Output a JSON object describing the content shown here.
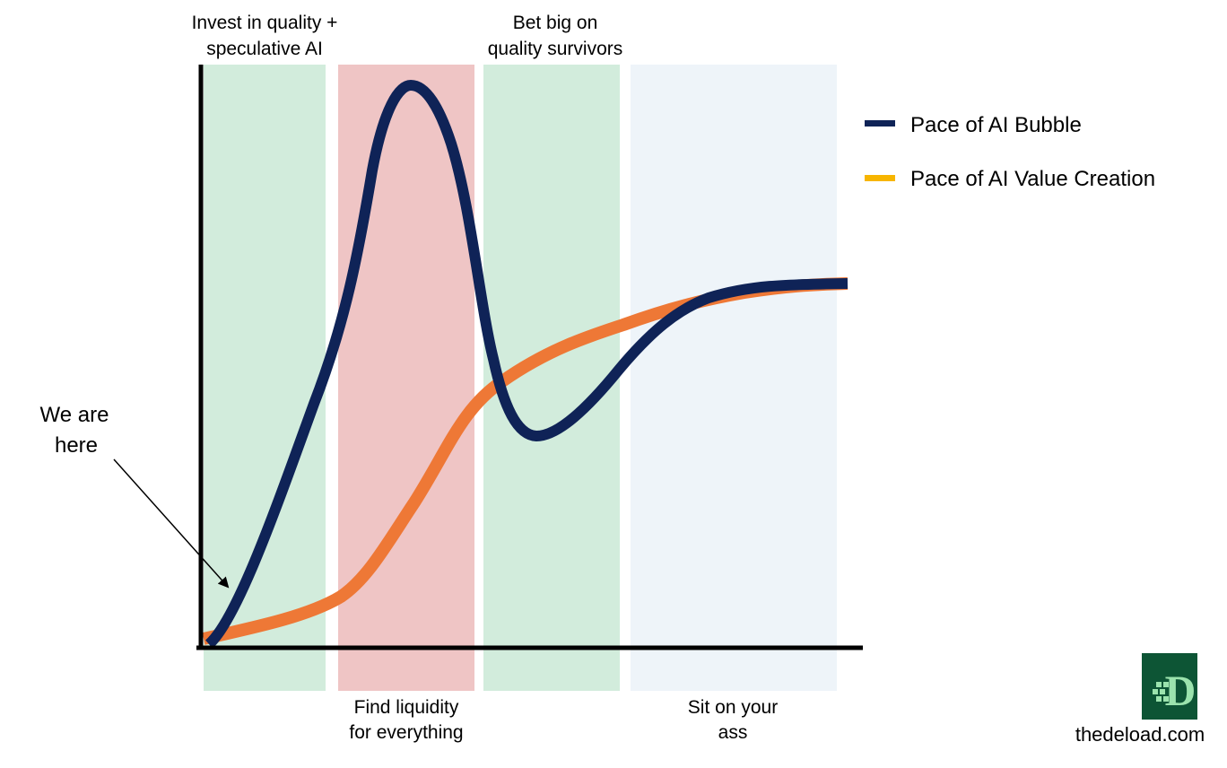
{
  "colors": {
    "invest_band": "#d2ecdc",
    "liquidity_band": "#efc5c5",
    "bet_band": "#d2ecdc",
    "sit_band": "#eef4f9",
    "bubble_line": "#0f2357",
    "value_line": "#ee7836",
    "value_legend_swatch": "#f7b500",
    "axis": "#000000",
    "logo_bg": "#0d5535",
    "logo_fg": "#9be3ad"
  },
  "phases": {
    "invest": {
      "line1": "Invest in quality +",
      "line2": "speculative AI"
    },
    "liquidity": {
      "line1": "Find liquidity",
      "line2": "for everything"
    },
    "bet": {
      "line1": "Bet big on",
      "line2": "quality survivors"
    },
    "sit": {
      "line1": "Sit on your",
      "line2": "ass"
    }
  },
  "legend": {
    "bubble": "Pace of AI Bubble",
    "value": "Pace of AI Value Creation"
  },
  "annotation": {
    "line1": "We are",
    "line2": "here"
  },
  "brand": {
    "logo_letter": "D",
    "url": "thedeload.com"
  },
  "icons": {
    "logo": "thedeload-logo-icon",
    "arrow": "pointer-arrow-icon"
  }
}
